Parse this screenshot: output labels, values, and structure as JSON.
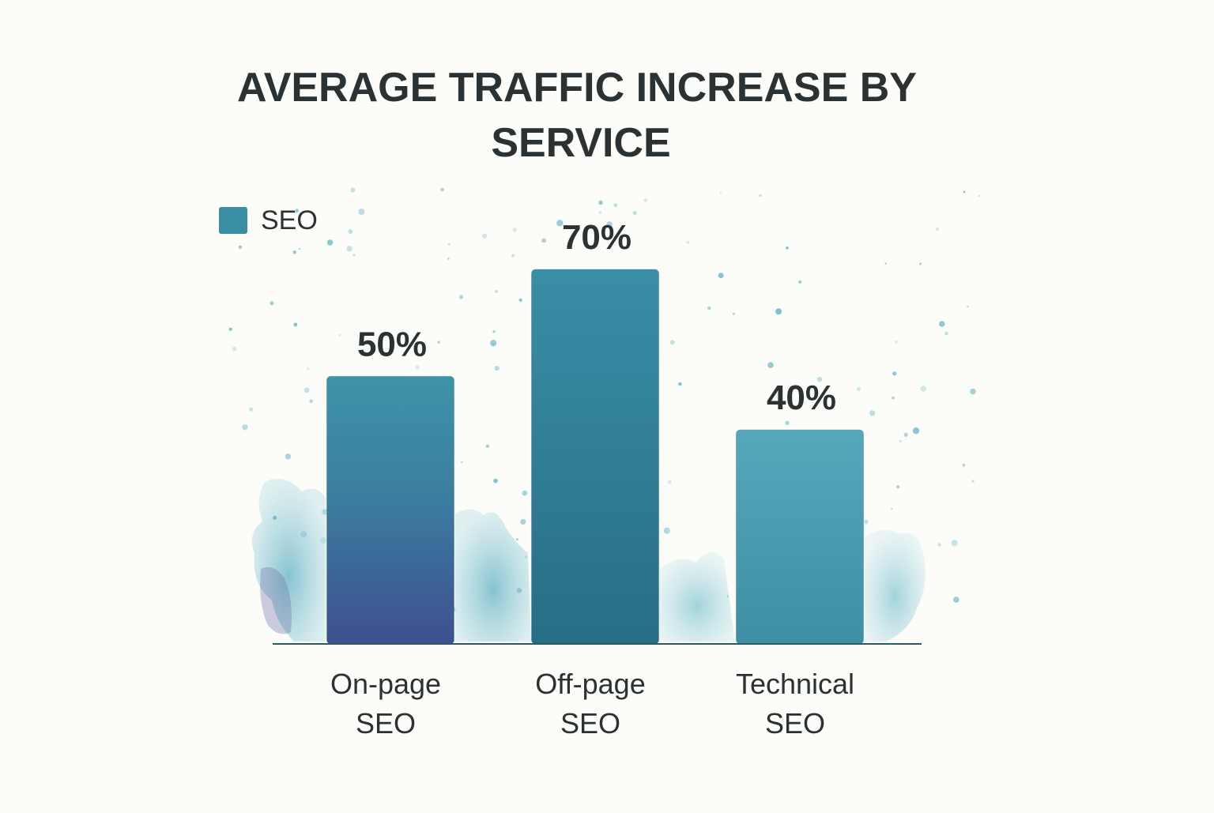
{
  "chart_data": {
    "type": "bar",
    "title_lines": [
      "AVERAGE TRAFFIC INCREASE BY",
      "SERVICE"
    ],
    "categories": [
      [
        "On-page",
        "SEO"
      ],
      [
        "Off-page",
        "SEO"
      ],
      [
        "Technical",
        "SEO"
      ]
    ],
    "series": [
      {
        "name": "SEO",
        "values": [
          50,
          70,
          40
        ],
        "data_labels": [
          "50%",
          "70%",
          "40%"
        ]
      }
    ],
    "legend": {
      "position": "top-left"
    },
    "grid": false,
    "ylim": [
      0,
      70
    ],
    "xlabel": "",
    "ylabel": ""
  },
  "colors": {
    "bar_on_page_top": "#3e93a8",
    "bar_on_page_bottom": "#3e4f8f",
    "bar_off_page": "#2e7f97",
    "bar_technical": "#4a9db2",
    "legend_swatch": "#3a8ea4",
    "splash_light": "#8ccad6",
    "splash_mid": "#5fb0c2",
    "splash_violet": "#6c6fa6",
    "baseline": "#2d5963",
    "text": "#2b3234"
  }
}
